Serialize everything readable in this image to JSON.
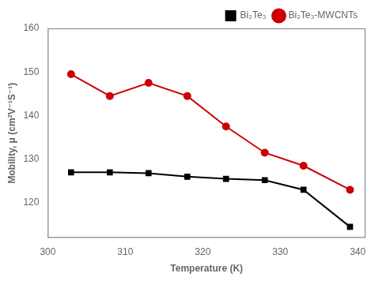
{
  "chart_data": {
    "type": "line",
    "x_label": "Temperature (K)",
    "y_label": "Mobility, μ (cm²V⁻¹S⁻¹)",
    "x": [
      303,
      308,
      313,
      318,
      323,
      328,
      333,
      339
    ],
    "series": [
      {
        "name": "Bi₂Te₃",
        "color": "#000000",
        "marker": "square",
        "line_style": "solid",
        "values": [
          127.0,
          127.0,
          126.8,
          126.0,
          125.5,
          125.2,
          123.0,
          114.5
        ]
      },
      {
        "name": "Bi₂Te₃-MWCNTs",
        "color": "#cc0000",
        "marker": "circle",
        "line_style": "solid",
        "values": [
          149.5,
          144.5,
          147.5,
          144.5,
          137.5,
          131.5,
          128.5,
          123.0
        ]
      }
    ],
    "xlim": [
      300,
      341
    ],
    "ylim": [
      112,
      160
    ],
    "xticks": [
      300,
      310,
      320,
      330,
      340
    ],
    "yticks": [
      120,
      130,
      140,
      150,
      160
    ],
    "grid": false,
    "legend": "upper right"
  }
}
